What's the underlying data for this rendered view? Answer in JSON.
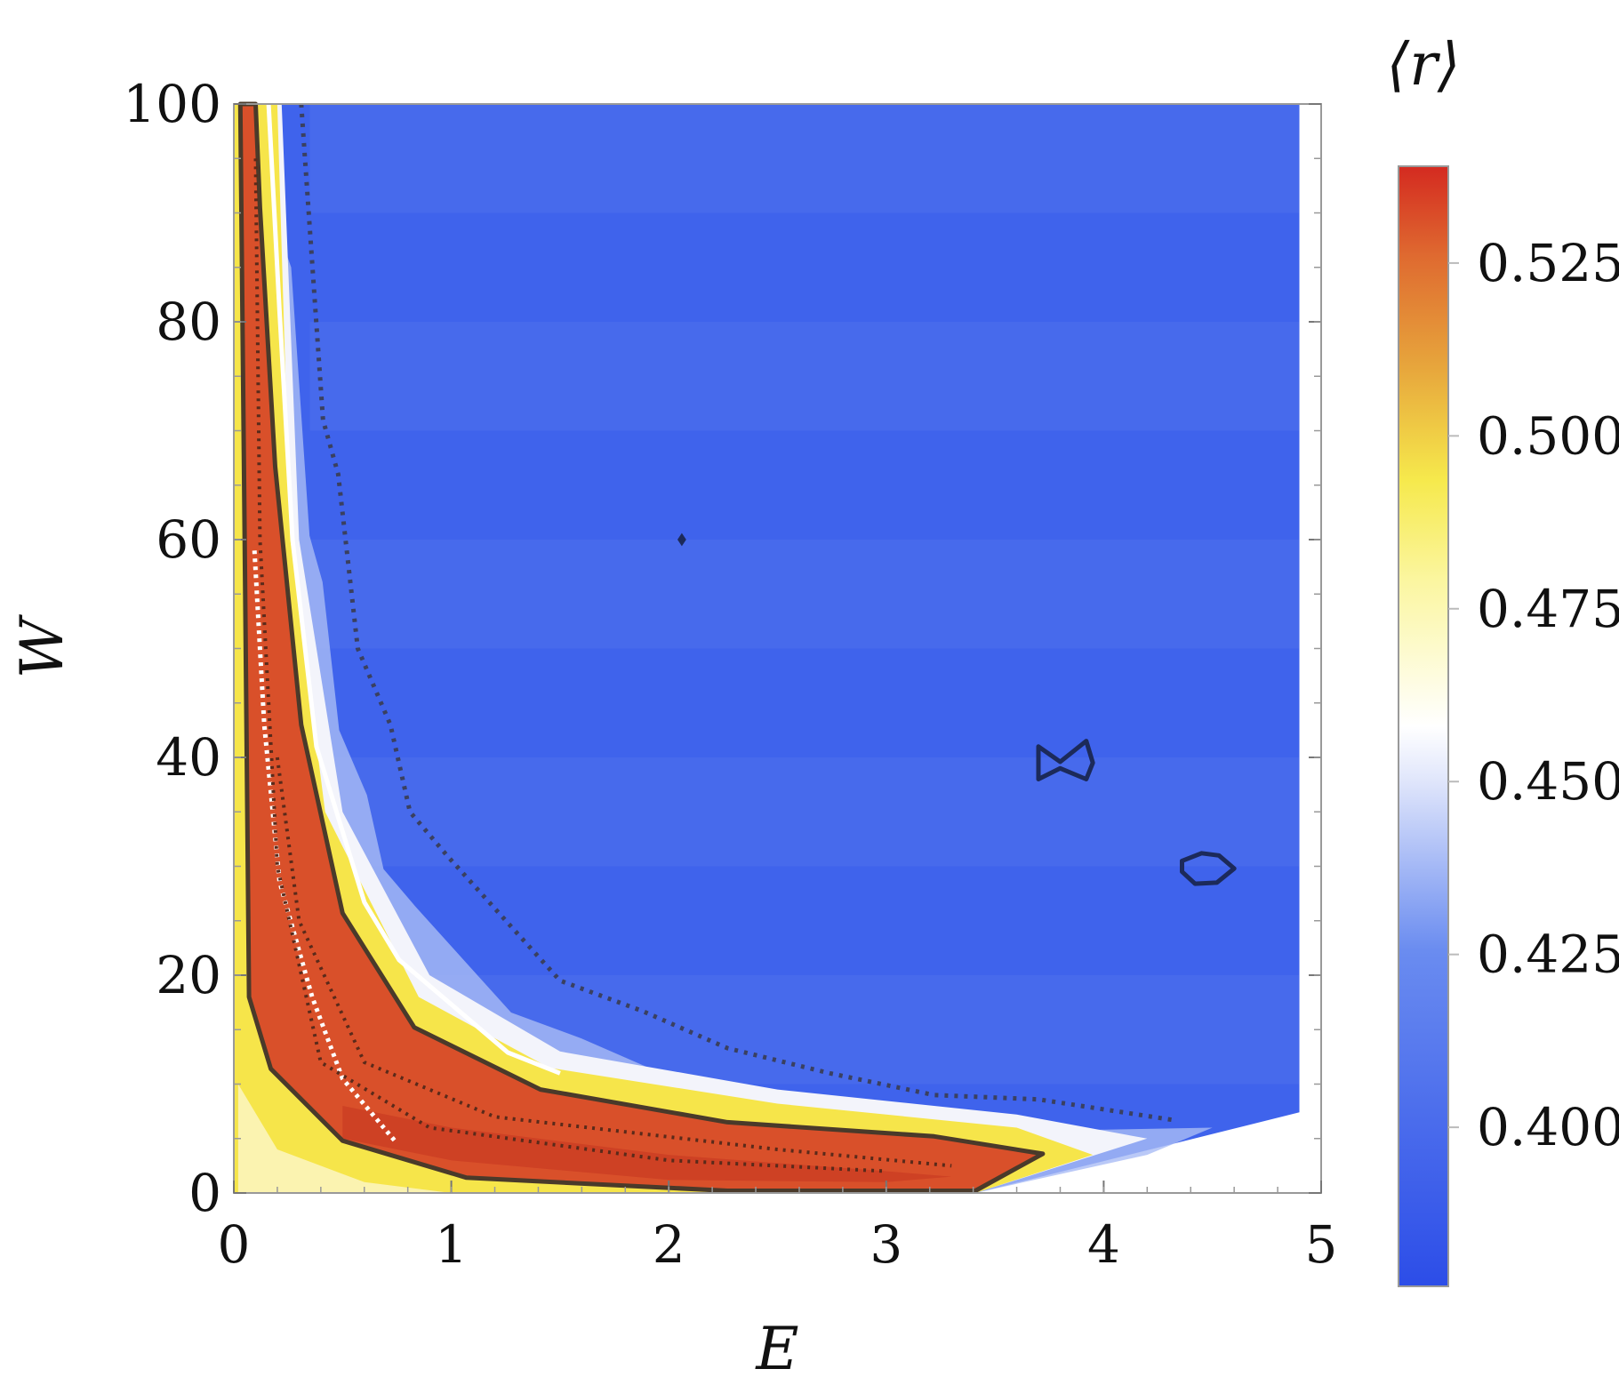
{
  "chart_data": {
    "type": "heatmap",
    "title": "",
    "xlabel": "E",
    "ylabel": "W",
    "colorbar_label": "⟨r⟩",
    "xlim": [
      0,
      5
    ],
    "ylim": [
      0,
      100
    ],
    "xticks": [
      "0",
      "1",
      "2",
      "3",
      "4",
      "5"
    ],
    "yticks": [
      "0",
      "20",
      "40",
      "60",
      "80",
      "100"
    ],
    "colorbar": {
      "range": [
        0.377,
        0.539
      ],
      "ticks": [
        "0.400",
        "0.425",
        "0.450",
        "0.475",
        "0.500",
        "0.525"
      ],
      "tick_values": [
        0.4,
        0.425,
        0.45,
        0.475,
        0.5,
        0.525
      ],
      "colors": [
        "#2c4de8",
        "#5a7df0",
        "#ffffff",
        "#f7f25e",
        "#e39a3c",
        "#d42a20"
      ]
    },
    "regions": {
      "background_blue_value": 0.39,
      "data_extent_E_max": 4.9,
      "lower_right_boundary": [
        [
          3.41,
          0
        ],
        [
          4.9,
          7.4
        ]
      ]
    },
    "contours": [
      {
        "name": "red-region-boundary",
        "style": "solid-dark",
        "points": [
          [
            0.03,
            100
          ],
          [
            0.05,
            60
          ],
          [
            0.07,
            18
          ],
          [
            0.17,
            11.4
          ],
          [
            0.5,
            4.8
          ],
          [
            1.07,
            1.4
          ],
          [
            2.27,
            0.2
          ],
          [
            3.41,
            0.2
          ],
          [
            3.72,
            3.6
          ],
          [
            3.22,
            5.2
          ],
          [
            2.27,
            6.5
          ],
          [
            1.41,
            9.5
          ],
          [
            0.83,
            15.2
          ],
          [
            0.5,
            25.7
          ],
          [
            0.31,
            43
          ],
          [
            0.19,
            66.7
          ],
          [
            0.12,
            90.5
          ],
          [
            0.1,
            100
          ]
        ]
      },
      {
        "name": "outer-dotted-contour",
        "style": "dotted-dark",
        "points": [
          [
            0.31,
            100
          ],
          [
            0.41,
            71
          ],
          [
            0.48,
            66
          ],
          [
            0.57,
            50
          ],
          [
            0.72,
            43
          ],
          [
            0.81,
            35
          ],
          [
            0.98,
            31
          ],
          [
            1.26,
            24.8
          ],
          [
            1.5,
            19.5
          ],
          [
            1.88,
            16.7
          ],
          [
            2.27,
            13.3
          ],
          [
            2.74,
            11
          ],
          [
            3.22,
            9
          ],
          [
            3.7,
            8.6
          ],
          [
            4.32,
            6.7
          ]
        ]
      },
      {
        "name": "white-solid-curve",
        "style": "solid-white",
        "points": [
          [
            0.16,
            100
          ],
          [
            0.21,
            81
          ],
          [
            0.27,
            60
          ],
          [
            0.38,
            41
          ],
          [
            0.6,
            26.7
          ],
          [
            0.76,
            21.4
          ],
          [
            1.26,
            12.9
          ],
          [
            1.5,
            11
          ]
        ]
      },
      {
        "name": "white-dotted-curve",
        "style": "dotted-white",
        "points": [
          [
            0.095,
            59
          ],
          [
            0.14,
            43
          ],
          [
            0.21,
            28.6
          ],
          [
            0.36,
            18
          ],
          [
            0.5,
            10.5
          ],
          [
            0.74,
            4.8
          ]
        ]
      },
      {
        "name": "blue-island-1",
        "style": "solid-navy",
        "points": [
          [
            3.7,
            41
          ],
          [
            3.8,
            39.6
          ],
          [
            3.92,
            41.5
          ],
          [
            3.95,
            39.5
          ],
          [
            3.92,
            38
          ],
          [
            3.8,
            39
          ],
          [
            3.7,
            38
          ]
        ]
      },
      {
        "name": "blue-island-2",
        "style": "solid-navy",
        "points": [
          [
            4.36,
            30.5
          ],
          [
            4.45,
            31.2
          ],
          [
            4.53,
            31
          ],
          [
            4.6,
            29.8
          ],
          [
            4.52,
            28.5
          ],
          [
            4.42,
            28.4
          ],
          [
            4.36,
            29.5
          ]
        ]
      }
    ]
  }
}
